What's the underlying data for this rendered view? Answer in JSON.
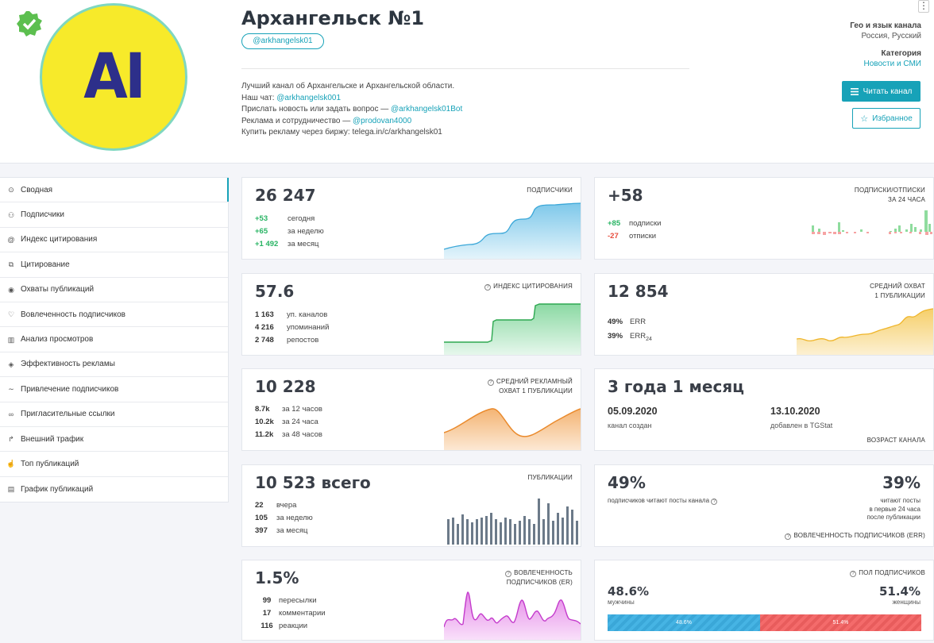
{
  "channel": {
    "title": "Архангельск №1",
    "username": "@arkhangelsk01",
    "desc": {
      "line1": "Лучший канал об Архангельске и Архангельской области.",
      "line2_text": "Наш чат: ",
      "line2_link": "@arkhangelsk001",
      "line3_text": "Прислать новость или задать вопрос — ",
      "line3_link": "@arkhangelsk01Bot",
      "line4_text": "Реклама и сотрудничество — ",
      "line4_link": "@prodovan4000",
      "line5": "Купить рекламу через биржу: telega.in/c/arkhangelsk01"
    },
    "avatar_text": "AI",
    "geo_label": "Гео и язык канала",
    "geo_value": "Россия, Русский",
    "category_label": "Категория",
    "category_value": "Новости и СМИ",
    "read_button": "Читать канал",
    "fav_button": "Избранное",
    "menu_dots": "⋮"
  },
  "sidebar": {
    "items": [
      {
        "label": "Сводная",
        "icon": "⊙"
      },
      {
        "label": "Подписчики",
        "icon": "⚇"
      },
      {
        "label": "Индекс цитирования",
        "icon": "@"
      },
      {
        "label": "Цитирование",
        "icon": "⧉"
      },
      {
        "label": "Охваты публикаций",
        "icon": "◉"
      },
      {
        "label": "Вовлеченность подписчиков",
        "icon": "♡"
      },
      {
        "label": "Анализ просмотров",
        "icon": "▥"
      },
      {
        "label": "Эффективность рекламы",
        "icon": "◈"
      },
      {
        "label": "Привлечение подписчиков",
        "icon": "∼"
      },
      {
        "label": "Пригласительные ссылки",
        "icon": "∞"
      },
      {
        "label": "Внешний трафик",
        "icon": "↱"
      },
      {
        "label": "Топ публикаций",
        "icon": "☝"
      },
      {
        "label": "График публикаций",
        "icon": "▤"
      }
    ]
  },
  "cards": {
    "subscribers": {
      "value": "26 247",
      "label": "ПОДПИСЧИКИ",
      "rows": [
        [
          "+53",
          "сегодня"
        ],
        [
          "+65",
          "за неделю"
        ],
        [
          "+1 492",
          "за месяц"
        ]
      ]
    },
    "subs_unsubs": {
      "value": "+58",
      "label1": "ПОДПИСКИ/ОТПИСКИ",
      "label2": "ЗА 24 ЧАСА",
      "rows": [
        [
          "+85",
          "подписки"
        ],
        [
          "-27",
          "отписки"
        ]
      ]
    },
    "citation": {
      "value": "57.6",
      "label": "ИНДЕКС ЦИТИРОВАНИЯ",
      "rows": [
        [
          "1 163",
          "уп. каналов"
        ],
        [
          "4 216",
          "упоминаний"
        ],
        [
          "2 748",
          "репостов"
        ]
      ]
    },
    "reach": {
      "value": "12 854",
      "label1": "СРЕДНИЙ ОХВАТ",
      "label2": "1 ПУБЛИКАЦИИ",
      "rows": [
        [
          "49%",
          "ERR"
        ],
        [
          "39%",
          "ERR"
        ]
      ],
      "sub": "24"
    },
    "ad_reach": {
      "value": "10 228",
      "label1": "СРЕДНИЙ РЕКЛАМНЫЙ",
      "label2": "ОХВАТ 1 ПУБЛИКАЦИИ",
      "rows": [
        [
          "8.7k",
          "за 12 часов"
        ],
        [
          "10.2k",
          "за 24 часа"
        ],
        [
          "11.2k",
          "за 48 часов"
        ]
      ]
    },
    "age": {
      "value": "3 года 1 месяц",
      "created_date": "05.09.2020",
      "created_label": "канал создан",
      "added_date": "13.10.2020",
      "added_label": "добавлен в TGStat",
      "label": "ВОЗРАСТ КАНАЛА"
    },
    "posts": {
      "value": "10 523 всего",
      "label": "ПУБЛИКАЦИИ",
      "rows": [
        [
          "22",
          "вчера"
        ],
        [
          "105",
          "за неделю"
        ],
        [
          "397",
          "за месяц"
        ]
      ]
    },
    "err": {
      "left_value": "49%",
      "left_label": "подписчиков читают посты канала",
      "right_value": "39%",
      "right_l1": "читают посты",
      "right_l2": "в первые 24 часа",
      "right_l3": "после публикации",
      "label": "ВОВЛЕЧЕННОСТЬ ПОДПИСЧИКОВ (ERR)"
    },
    "er": {
      "value": "1.5%",
      "label1": "ВОВЛЕЧЕННОСТЬ",
      "label2": "ПОДПИСЧИКОВ (ER)",
      "rows": [
        [
          "99",
          "пересылки"
        ],
        [
          "17",
          "комментарии"
        ],
        [
          "116",
          "реакции"
        ]
      ]
    },
    "gender": {
      "label": "ПОЛ ПОДПИСЧИКОВ",
      "male_value": "48.6%",
      "male_label": "мужчины",
      "female_value": "51.4%",
      "female_label": "женщины",
      "male_fraction": 0.486,
      "male_bar": "48.6%",
      "female_bar": "51.4%"
    }
  },
  "colors": {
    "accent": "#17a2b8",
    "green": "#28b463",
    "red": "#e74c3c",
    "blue_area": "#9fd6ef",
    "green_area": "#a6e0b8",
    "yellow_area": "#f7d88a",
    "orange_area": "#f6c28f",
    "pink_area": "#eea8f0",
    "bar_gray": "#6c7a89"
  }
}
